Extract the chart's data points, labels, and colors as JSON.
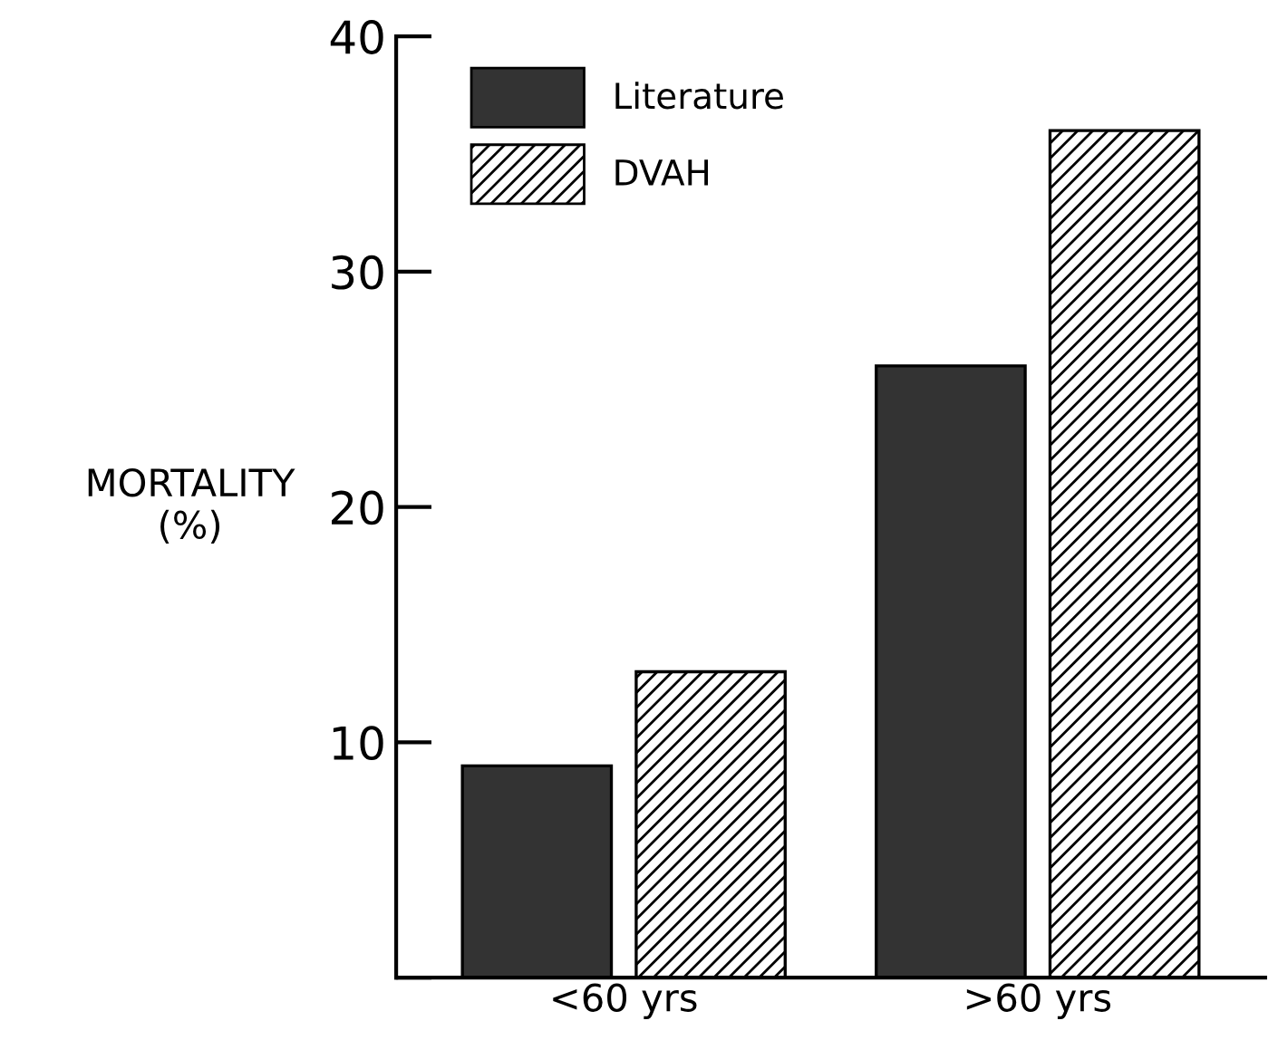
{
  "chart_data": {
    "type": "bar",
    "ylabel": "MORTALITY\n(%)",
    "categories": [
      "<60 yrs",
      ">60 yrs"
    ],
    "series": [
      {
        "name": "Literature",
        "color": "#333333",
        "values": [
          9,
          26
        ]
      },
      {
        "name": "DVAH",
        "color": "#000000",
        "values": [
          13,
          36
        ]
      }
    ],
    "ylim": [
      0,
      40
    ],
    "yticks": [
      {
        "value": 0,
        "label": null
      },
      10,
      20,
      30,
      40
    ],
    "grid": false,
    "legend": "top left"
  }
}
